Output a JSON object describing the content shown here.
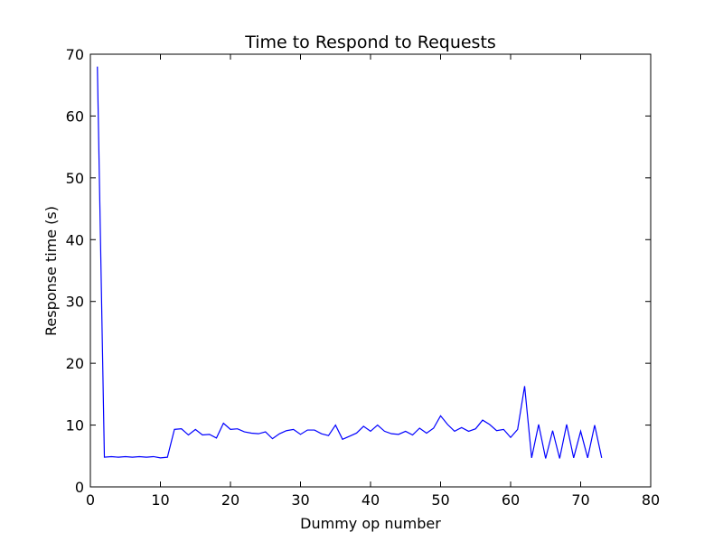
{
  "chart_data": {
    "type": "line",
    "title": "Time to Respond to Requests",
    "xlabel": "Dummy op number",
    "ylabel": "Response time (s)",
    "xlim": [
      0,
      80
    ],
    "ylim": [
      0,
      70
    ],
    "xticks": [
      "0",
      "10",
      "20",
      "30",
      "40",
      "50",
      "60",
      "70",
      "80"
    ],
    "yticks": [
      "0",
      "10",
      "20",
      "30",
      "40",
      "50",
      "60",
      "70"
    ],
    "grid": false,
    "line_color": "#0000ff",
    "series": [
      {
        "x": [
          1,
          2,
          3,
          4,
          5,
          6,
          7,
          8,
          9,
          10,
          11,
          12,
          13,
          14,
          15,
          16,
          17,
          18,
          19,
          20,
          21,
          22,
          23,
          24,
          25,
          26,
          27,
          28,
          29,
          30,
          31,
          32,
          33,
          34,
          35,
          36,
          37,
          38,
          39,
          40,
          41,
          42,
          43,
          44,
          45,
          46,
          47,
          48,
          49,
          50,
          51,
          52,
          53,
          54,
          55,
          56,
          57,
          58,
          59,
          60,
          61,
          62,
          63,
          64,
          65,
          66,
          67,
          68,
          69,
          70,
          71,
          72,
          73
        ],
        "values": [
          68,
          4.8,
          4.9,
          4.8,
          4.9,
          4.8,
          4.9,
          4.8,
          4.9,
          4.7,
          4.8,
          9.3,
          9.4,
          8.4,
          9.3,
          8.4,
          8.5,
          7.9,
          10.3,
          9.3,
          9.4,
          8.9,
          8.7,
          8.6,
          8.9,
          7.8,
          8.6,
          9.1,
          9.3,
          8.5,
          9.2,
          9.2,
          8.6,
          8.3,
          10.0,
          7.7,
          8.2,
          8.7,
          9.8,
          9.0,
          10.0,
          9.0,
          8.6,
          8.5,
          9.0,
          8.4,
          9.5,
          8.7,
          9.5,
          11.5,
          10.1,
          9.0,
          9.6,
          9.0,
          9.4,
          10.8,
          10.1,
          9.1,
          9.3,
          8.0,
          9.3,
          16.3,
          4.7,
          10.1,
          4.6,
          9.1,
          4.6,
          10.1,
          4.7,
          9.0,
          4.7,
          10.0,
          4.7
        ]
      }
    ]
  }
}
